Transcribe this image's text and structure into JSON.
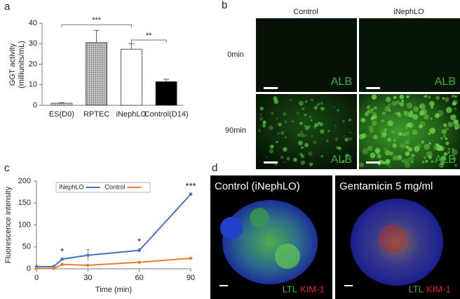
{
  "panel_labels": [
    "a",
    "b",
    "c",
    "d"
  ],
  "chart_data": [
    {
      "type": "bar",
      "ylabel": [
        "GGT activity",
        "(milliunits/mL)"
      ],
      "categories": [
        "ES(D0)",
        "RPTEC",
        "iNephLO",
        "Control(D14)"
      ],
      "values": [
        1,
        30.5,
        27.3,
        11.5
      ],
      "errors": [
        0.3,
        6,
        2.8,
        1.2
      ],
      "fills": [
        "stripes",
        "grid",
        "#ffffff",
        "#000000"
      ],
      "ylim": [
        0,
        40
      ],
      "yticks": [
        0,
        10,
        20,
        30,
        40
      ],
      "annotations": [
        {
          "text": "***",
          "from": 0,
          "to": 2
        },
        {
          "text": "**",
          "from": 2,
          "to": 3
        }
      ]
    },
    {
      "type": "line",
      "xlabel": "Time (min)",
      "ylabel": "Fluorescence intensity",
      "x": [
        0,
        10,
        15,
        30,
        60,
        90
      ],
      "xlim": [
        0,
        90
      ],
      "xticks": [
        0,
        30,
        60,
        90
      ],
      "ylim": [
        0,
        200
      ],
      "yticks": [
        0,
        50,
        100,
        150,
        200
      ],
      "legend": "top-left",
      "series": [
        {
          "name": "iNephLO",
          "color": "#4472c4",
          "values": [
            5,
            5,
            22,
            31,
            42,
            170
          ],
          "errors": [
            1,
            1,
            2,
            13,
            4,
            3
          ]
        },
        {
          "name": "Control",
          "color": "#ed7d31",
          "values": [
            1,
            1,
            10,
            8,
            15,
            24
          ],
          "errors": [
            1,
            1,
            1,
            1,
            1,
            2
          ]
        }
      ],
      "annotations": [
        {
          "text": "*",
          "x": 15
        },
        {
          "text": "*",
          "x": 60
        },
        {
          "text": "***",
          "x": 90
        }
      ]
    }
  ],
  "panel_b": {
    "columns": [
      "Control",
      "iNephLO"
    ],
    "rows": [
      "0min",
      "90min"
    ],
    "stain": "ALB"
  },
  "panel_d": {
    "titles": [
      "Control (iNephLO)",
      "Gentamicin 5 mg/ml"
    ],
    "stains": [
      "LTL",
      "KIM-1"
    ]
  }
}
